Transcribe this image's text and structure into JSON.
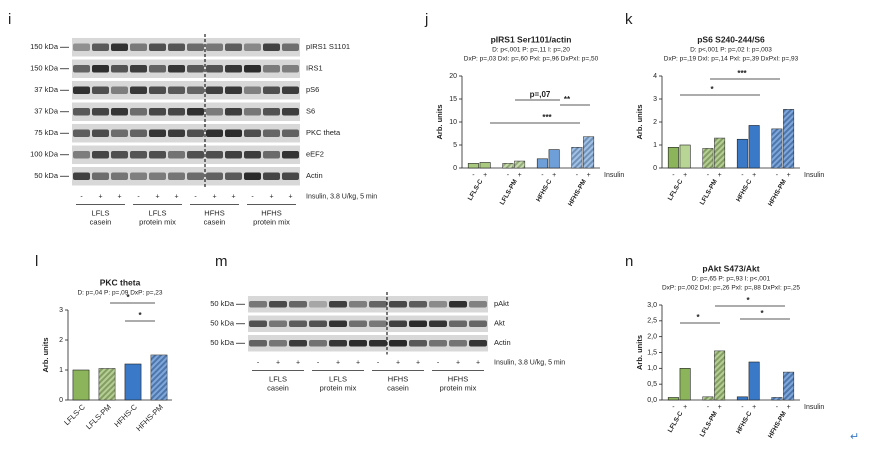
{
  "chart_data": [
    {
      "type": "bar",
      "panel": "j",
      "title": "pIRS1 Ser1101/actin",
      "stats": [
        "D: p<,001   P: p=,11   I: p=,20",
        "DxP: p=,03   DxI: p=,60   PxI: p=,96   DxPxI: p=,50"
      ],
      "y_label": "Arb. units",
      "row_label": "Insulin",
      "groups": [
        "LFLS-C",
        "LFLS-PM",
        "HFHS-C",
        "HFHS-PM"
      ],
      "categories": [
        "-",
        "+",
        "-",
        "+",
        "-",
        "+",
        "-",
        "+"
      ],
      "values": [
        1.0,
        1.2,
        1.0,
        1.5,
        2.0,
        4.0,
        4.5,
        6.8
      ],
      "colors": [
        "#a9c97f",
        "#a9c97f",
        "#a9c97f",
        "#a9c97f",
        "#6f9fd8",
        "#6f9fd8",
        "#6f9fd8",
        "#6f9fd8"
      ],
      "hatched": [
        false,
        false,
        true,
        true,
        false,
        false,
        true,
        true
      ],
      "ylim": [
        0,
        20
      ],
      "yticks": [
        0,
        5,
        10,
        15,
        20
      ],
      "annotations": [
        "p=,07",
        "***",
        "**"
      ]
    },
    {
      "type": "bar",
      "panel": "k",
      "title": "pS6 S240-244/S6",
      "stats": [
        "D: p<,001   P: p=,02   I: p=,003",
        "DxP: p=,19   DxI: p=,14   PxI: p=,39   DxPxI: p=,93"
      ],
      "y_label": "Arb. units",
      "row_label": "Insulin",
      "groups": [
        "LFLS-C",
        "LFLS-PM",
        "HFHS-C",
        "HFHS-PM"
      ],
      "categories": [
        "-",
        "+",
        "-",
        "+",
        "-",
        "+",
        "-",
        "+"
      ],
      "values": [
        0.9,
        1.0,
        0.85,
        1.3,
        1.25,
        1.85,
        1.7,
        2.55
      ],
      "colors": [
        "#8cb45a",
        "#b9d596",
        "#8cb45a",
        "#8cb45a",
        "#3a78c8",
        "#3a78c8",
        "#3a78c8",
        "#3a78c8"
      ],
      "hatched": [
        false,
        false,
        true,
        true,
        false,
        false,
        true,
        true
      ],
      "ylim": [
        0,
        4
      ],
      "yticks": [
        0,
        1,
        2,
        3,
        4
      ],
      "annotations": [
        "*",
        "***"
      ]
    },
    {
      "type": "bar",
      "panel": "l",
      "title": "PKC theta",
      "stats": [
        "D: p=,04   P: p=,09   DxP: p=,23"
      ],
      "y_label": "Arb. units",
      "categories": [
        "LFLS-C",
        "LFLS-PM",
        "HFHS-C",
        "HFHS-PM"
      ],
      "values": [
        1.0,
        1.05,
        1.2,
        1.5
      ],
      "colors": [
        "#8cb45a",
        "#8cb45a",
        "#3a78c8",
        "#3a78c8"
      ],
      "hatched": [
        false,
        true,
        false,
        true
      ],
      "ylim": [
        0,
        3
      ],
      "yticks": [
        0,
        1,
        2,
        3
      ],
      "annotations": [
        "*",
        "*"
      ]
    },
    {
      "type": "bar",
      "panel": "n",
      "title": "pAkt S473/Akt",
      "stats": [
        "D: p=,65   P: p=,93   I: p<,001",
        "DxP: p=,002   DxI: p=,26   PxI: p=,88   DxPxI: p=,25"
      ],
      "y_label": "Arb. units",
      "row_label": "Insulin",
      "groups": [
        "LFLS-C",
        "LFLS-PM",
        "HFHS-C",
        "HFHS-PM"
      ],
      "categories": [
        "-",
        "+",
        "-",
        "+",
        "-",
        "+",
        "-",
        "+"
      ],
      "values": [
        0.08,
        1.0,
        0.1,
        1.55,
        0.1,
        1.2,
        0.08,
        0.88
      ],
      "colors": [
        "#8cb45a",
        "#8cb45a",
        "#8cb45a",
        "#8cb45a",
        "#3a78c8",
        "#3a78c8",
        "#3a78c8",
        "#3a78c8"
      ],
      "hatched": [
        false,
        false,
        true,
        true,
        false,
        false,
        true,
        true
      ],
      "ylim": [
        0,
        3
      ],
      "yticks": [
        {
          "value": 0,
          "label": "0,0"
        },
        {
          "value": 0.5,
          "label": "0,5"
        },
        {
          "value": 1,
          "label": "1,0"
        },
        {
          "value": 1.5,
          "label": "1,5"
        },
        {
          "value": 2,
          "label": "2,0"
        },
        {
          "value": 2.5,
          "label": "2,5"
        },
        {
          "value": 3,
          "label": "3,0"
        }
      ],
      "annotations": [
        "*",
        "*",
        "*"
      ]
    }
  ],
  "blots": [
    {
      "panel": "i",
      "kda": [
        "150 kDa",
        "150 kDa",
        "37 kDa",
        "37 kDa",
        "75 kDa",
        "100 kDa",
        "50 kDa"
      ],
      "proteins": [
        "pIRS1 S1101",
        "IRS1",
        "pS6",
        "S6",
        "PKC theta",
        "eEF2",
        "Actin"
      ],
      "lanes": [
        "-",
        "+",
        "+",
        "-",
        "+",
        "+",
        "-",
        "+",
        "+",
        "-",
        "+",
        "+"
      ],
      "treatment": "Insulin, 3.8 U/kg, 5 min",
      "groups": [
        [
          "LFLS",
          "casein"
        ],
        [
          "LFLS",
          "protein mix"
        ],
        [
          "HFHS",
          "casein"
        ],
        [
          "HFHS",
          "protein mix"
        ]
      ]
    },
    {
      "panel": "m",
      "kda": [
        "50 kDa",
        "50 kDa",
        "50 kDa"
      ],
      "proteins": [
        "pAkt",
        "Akt",
        "Actin"
      ],
      "lanes": [
        "-",
        "+",
        "+",
        "-",
        "+",
        "+",
        "-",
        "+",
        "+",
        "-",
        "+",
        "+"
      ],
      "treatment": "Insulin, 3.8 U/kg, 5 min",
      "groups": [
        [
          "LFLS",
          "casein"
        ],
        [
          "LFLS",
          "protein mix"
        ],
        [
          "HFHS",
          "casein"
        ],
        [
          "HFHS",
          "protein mix"
        ]
      ]
    }
  ],
  "return_mark": "↵"
}
